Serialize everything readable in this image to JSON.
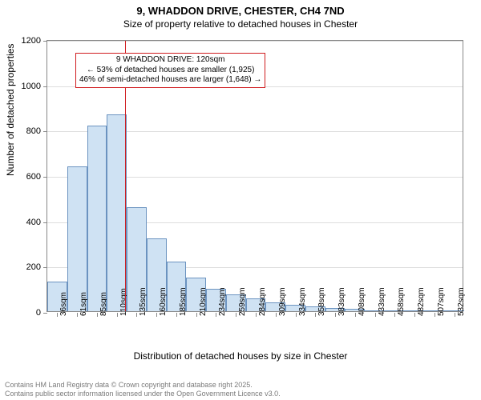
{
  "title": "9, WHADDON DRIVE, CHESTER, CH4 7ND",
  "subtitle": "Size of property relative to detached houses in Chester",
  "xlabel": "Distribution of detached houses by size in Chester",
  "ylabel": "Number of detached properties",
  "chart": {
    "type": "histogram",
    "categories": [
      "36sqm",
      "61sqm",
      "85sqm",
      "110sqm",
      "135sqm",
      "160sqm",
      "185sqm",
      "210sqm",
      "234sqm",
      "259sqm",
      "284sqm",
      "309sqm",
      "334sqm",
      "358sqm",
      "383sqm",
      "408sqm",
      "433sqm",
      "458sqm",
      "482sqm",
      "507sqm",
      "532sqm"
    ],
    "values": [
      130,
      640,
      820,
      870,
      460,
      320,
      220,
      150,
      100,
      75,
      55,
      40,
      30,
      20,
      15,
      10,
      5,
      3,
      2,
      1,
      1
    ],
    "ylim": [
      0,
      1200
    ],
    "ytick_step": 200,
    "bar_fill": "#cfe2f3",
    "bar_stroke": "#6b93c0",
    "grid_color": "#dddddd",
    "axis_color": "#888888",
    "background_color": "#ffffff",
    "label_fontsize": 12,
    "tick_fontsize": 10,
    "bar_width_ratio": 1.0
  },
  "marker": {
    "position_sqm": 120,
    "line_color": "#d01c1f"
  },
  "annotation": {
    "line1": "9 WHADDON DRIVE: 120sqm",
    "line2": "← 53% of detached houses are smaller (1,925)",
    "line3": "46% of semi-detached houses are larger (1,648) →",
    "border_color": "#d01c1f",
    "background_color": "#ffffff",
    "fontsize": 10
  },
  "footer": {
    "line1": "Contains HM Land Registry data © Crown copyright and database right 2025.",
    "line2": "Contains public sector information licensed under the Open Government Licence v3.0.",
    "color": "#7a7a7a"
  }
}
